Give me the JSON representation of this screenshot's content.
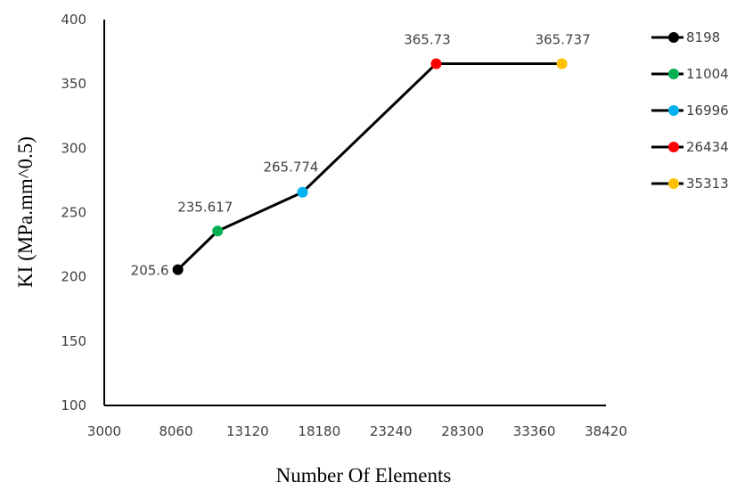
{
  "chart_data": {
    "type": "line",
    "xlabel": "Number Of Elements",
    "ylabel": "KI (MPa.mm^0.5)",
    "xlim": [
      3000,
      38420
    ],
    "ylim": [
      100,
      400
    ],
    "x_ticks": [
      "3000",
      "8060",
      "13120",
      "18180",
      "23240",
      "28300",
      "33360",
      "38420"
    ],
    "y_ticks": [
      "100",
      "150",
      "200",
      "250",
      "300",
      "350",
      "400"
    ],
    "grid": false,
    "legend_position": "right",
    "line_color": "#000000",
    "points": [
      {
        "x": 8198,
        "y": 205.6,
        "label": "205.6",
        "legend": "8198",
        "color": "#000000"
      },
      {
        "x": 11004,
        "y": 235.617,
        "label": "235.617",
        "legend": "11004",
        "color": "#00B050"
      },
      {
        "x": 16996,
        "y": 265.774,
        "label": "265.774",
        "legend": "16996",
        "color": "#00B0F0"
      },
      {
        "x": 26434,
        "y": 365.73,
        "label": "365.73",
        "legend": "26434",
        "color": "#FF0000"
      },
      {
        "x": 35313,
        "y": 365.737,
        "label": "365.737",
        "legend": "35313",
        "color": "#FFC000"
      }
    ]
  }
}
